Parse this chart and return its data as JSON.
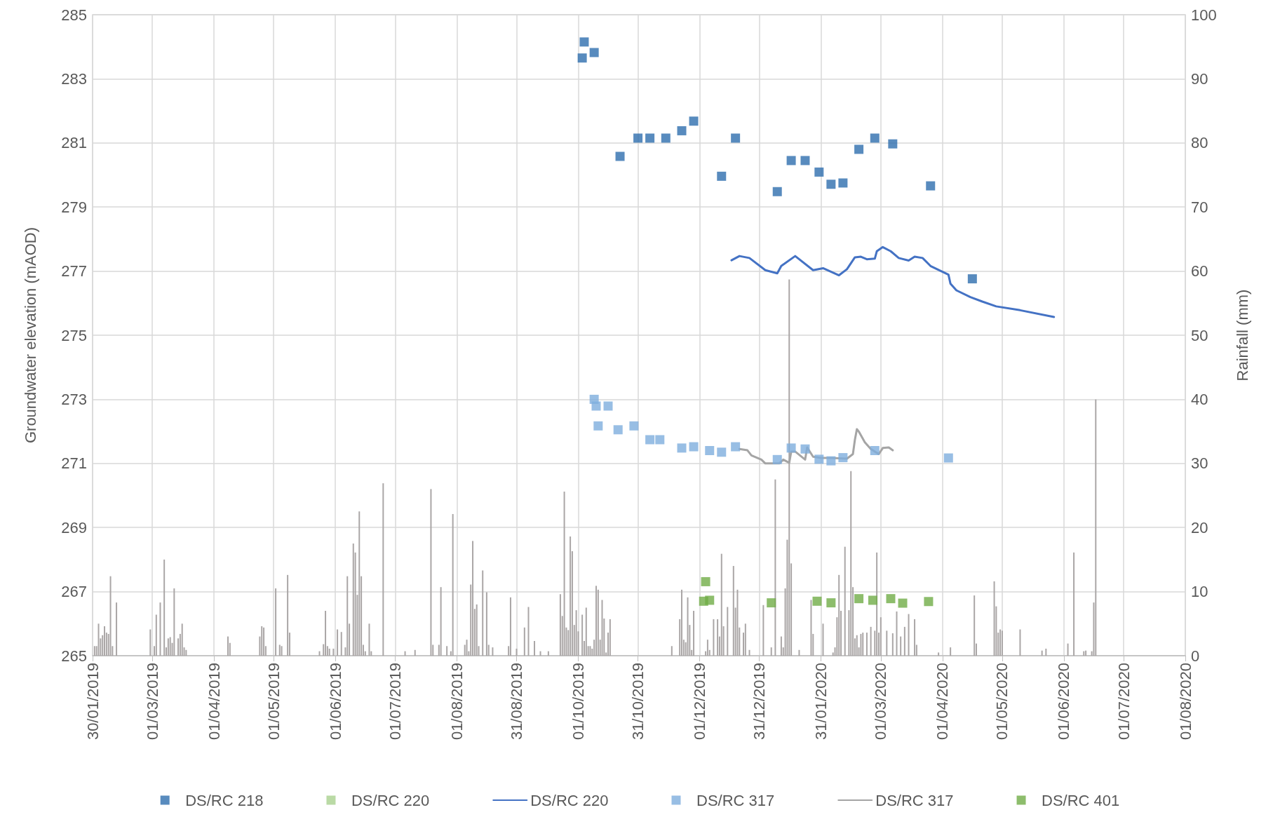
{
  "chart_data": {
    "type": "scatter",
    "ylabel": "Groundwater elevation (mAOD)",
    "y2label": "Rainfall (mm)",
    "xlim": [
      "2019-01-30",
      "2020-08-01"
    ],
    "xticks": [
      {
        "value": "2019-01-30",
        "label": "30/01/2019"
      },
      {
        "value": "2019-03-01",
        "label": "01/03/2019"
      },
      {
        "value": "2019-04-01",
        "label": "01/04/2019"
      },
      {
        "value": "2019-05-01",
        "label": "01/05/2019"
      },
      {
        "value": "2019-06-01",
        "label": "01/06/2019"
      },
      {
        "value": "2019-07-01",
        "label": "01/07/2019"
      },
      {
        "value": "2019-08-01",
        "label": "01/08/2019"
      },
      {
        "value": "2019-08-31",
        "label": "31/08/2019"
      },
      {
        "value": "2019-10-01",
        "label": "01/10/2019"
      },
      {
        "value": "2019-10-31",
        "label": "31/10/2019"
      },
      {
        "value": "2019-12-01",
        "label": "01/12/2019"
      },
      {
        "value": "2019-12-31",
        "label": "31/12/2019"
      },
      {
        "value": "2020-01-31",
        "label": "31/01/2020"
      },
      {
        "value": "2020-03-01",
        "label": "01/03/2020"
      },
      {
        "value": "2020-04-01",
        "label": "01/04/2020"
      },
      {
        "value": "2020-05-01",
        "label": "01/05/2020"
      },
      {
        "value": "2020-06-01",
        "label": "01/06/2020"
      },
      {
        "value": "2020-07-01",
        "label": "01/07/2020"
      },
      {
        "value": "2020-08-01",
        "label": "01/08/2020"
      }
    ],
    "ylim": [
      265,
      285
    ],
    "yticks": [
      265,
      267,
      269,
      271,
      273,
      275,
      277,
      279,
      281,
      283,
      285
    ],
    "y2lim": [
      0,
      100
    ],
    "y2ticks": [
      0,
      10,
      20,
      30,
      40,
      50,
      60,
      70,
      80,
      90,
      100
    ],
    "grid": true,
    "legend": "bottom",
    "marker": "square",
    "series": [
      {
        "type": "bar",
        "axis": "y2",
        "color": "#aaa6a6",
        "x": [
          "2019-01-31",
          "2019-02-01",
          "2019-02-02",
          "2019-02-03",
          "2019-02-04",
          "2019-02-05",
          "2019-02-06",
          "2019-02-07",
          "2019-02-08",
          "2019-02-09",
          "2019-02-11",
          "2019-02-28",
          "2019-03-02",
          "2019-03-03",
          "2019-03-05",
          "2019-03-07",
          "2019-03-08",
          "2019-03-09",
          "2019-03-10",
          "2019-03-11",
          "2019-03-12",
          "2019-03-14",
          "2019-03-15",
          "2019-03-16",
          "2019-03-17",
          "2019-03-18",
          "2019-04-08",
          "2019-04-09",
          "2019-04-24",
          "2019-04-25",
          "2019-04-26",
          "2019-04-27",
          "2019-05-02",
          "2019-05-04",
          "2019-05-05",
          "2019-05-08",
          "2019-05-09",
          "2019-05-24",
          "2019-05-26",
          "2019-05-27",
          "2019-05-28",
          "2019-05-29",
          "2019-05-31",
          "2019-06-02",
          "2019-06-04",
          "2019-06-06",
          "2019-06-07",
          "2019-06-08",
          "2019-06-10",
          "2019-06-11",
          "2019-06-12",
          "2019-06-13",
          "2019-06-14",
          "2019-06-15",
          "2019-06-16",
          "2019-06-18",
          "2019-06-19",
          "2019-06-25",
          "2019-07-06",
          "2019-07-11",
          "2019-07-19",
          "2019-07-20",
          "2019-07-23",
          "2019-07-24",
          "2019-07-27",
          "2019-07-29",
          "2019-07-30",
          "2019-08-05",
          "2019-08-06",
          "2019-08-07",
          "2019-08-08",
          "2019-08-09",
          "2019-08-10",
          "2019-08-11",
          "2019-08-12",
          "2019-08-14",
          "2019-08-16",
          "2019-08-17",
          "2019-08-19",
          "2019-08-27",
          "2019-08-28",
          "2019-08-31",
          "2019-09-04",
          "2019-09-06",
          "2019-09-09",
          "2019-09-12",
          "2019-09-16",
          "2019-09-22",
          "2019-09-23",
          "2019-09-24",
          "2019-09-25",
          "2019-09-26",
          "2019-09-27",
          "2019-09-28",
          "2019-09-29",
          "2019-09-30",
          "2019-10-01",
          "2019-10-03",
          "2019-10-04",
          "2019-10-05",
          "2019-10-06",
          "2019-10-07",
          "2019-10-08",
          "2019-10-09",
          "2019-10-10",
          "2019-10-11",
          "2019-10-12",
          "2019-10-13",
          "2019-10-14",
          "2019-10-15",
          "2019-10-16",
          "2019-10-17",
          "2019-11-17",
          "2019-11-21",
          "2019-11-22",
          "2019-11-23",
          "2019-11-24",
          "2019-11-25",
          "2019-11-26",
          "2019-11-27",
          "2019-11-28",
          "2019-12-04",
          "2019-12-05",
          "2019-12-06",
          "2019-12-08",
          "2019-12-10",
          "2019-12-11",
          "2019-12-12",
          "2019-12-13",
          "2019-12-15",
          "2019-12-18",
          "2019-12-19",
          "2019-12-20",
          "2019-12-21",
          "2019-12-23",
          "2019-12-24",
          "2019-12-26",
          "2020-01-02",
          "2020-01-06",
          "2020-01-08",
          "2020-01-11",
          "2020-01-12",
          "2020-01-13",
          "2020-01-14",
          "2020-01-15",
          "2020-01-16",
          "2020-01-20",
          "2020-01-26",
          "2020-01-27",
          "2020-02-01",
          "2020-02-06",
          "2020-02-07",
          "2020-02-08",
          "2020-02-09",
          "2020-02-10",
          "2020-02-12",
          "2020-02-14",
          "2020-02-15",
          "2020-02-16",
          "2020-02-17",
          "2020-02-18",
          "2020-02-19",
          "2020-02-20",
          "2020-02-21",
          "2020-02-23",
          "2020-02-25",
          "2020-02-27",
          "2020-02-28",
          "2020-02-29",
          "2020-03-01",
          "2020-03-04",
          "2020-03-07",
          "2020-03-09",
          "2020-03-11",
          "2020-03-13",
          "2020-03-15",
          "2020-03-18",
          "2020-03-19",
          "2020-03-30",
          "2020-04-05",
          "2020-04-17",
          "2020-04-18",
          "2020-04-27",
          "2020-04-28",
          "2020-04-29",
          "2020-04-30",
          "2020-05-01",
          "2020-05-10",
          "2020-05-21",
          "2020-05-23",
          "2020-06-03",
          "2020-06-06",
          "2020-06-11",
          "2020-06-12",
          "2020-06-15",
          "2020-06-16",
          "2020-06-17"
        ],
        "values": [
          1.5,
          1.5,
          5.0,
          2.7,
          3.2,
          4.6,
          3.6,
          3.4,
          12.4,
          1.5,
          8.3,
          4.1,
          1.5,
          6.4,
          8.3,
          15.0,
          1.3,
          2.7,
          2.9,
          2.0,
          10.5,
          2.7,
          3.4,
          5.0,
          1.3,
          0.9,
          3.0,
          2.0,
          3.0,
          4.6,
          4.4,
          1.5,
          10.5,
          1.7,
          1.5,
          12.6,
          3.6,
          0.7,
          1.8,
          7.0,
          1.5,
          1.1,
          1.1,
          4.1,
          3.7,
          1.3,
          12.4,
          5.0,
          17.5,
          16.1,
          9.5,
          22.5,
          12.4,
          1.7,
          0.7,
          5.0,
          0.7,
          26.9,
          0.7,
          0.9,
          26.0,
          1.7,
          1.7,
          10.7,
          1.5,
          0.7,
          22.1,
          1.7,
          2.5,
          0.7,
          11.1,
          17.9,
          7.3,
          8.0,
          1.5,
          13.3,
          9.9,
          1.7,
          1.3,
          1.5,
          9.1,
          1.1,
          4.4,
          7.6,
          2.3,
          0.7,
          0.7,
          9.6,
          6.2,
          25.6,
          4.4,
          4.0,
          18.6,
          16.3,
          4.8,
          7.1,
          3.8,
          6.4,
          2.3,
          7.5,
          1.5,
          1.5,
          1.1,
          2.5,
          10.9,
          10.3,
          2.5,
          8.7,
          5.8,
          0.5,
          3.6,
          5.7,
          1.5,
          5.7,
          10.3,
          2.5,
          2.1,
          9.1,
          4.8,
          0.9,
          7.0,
          0.7,
          2.5,
          0.9,
          5.7,
          5.7,
          3.0,
          15.9,
          4.6,
          7.6,
          14.0,
          7.5,
          10.3,
          4.4,
          3.6,
          5.0,
          0.9,
          7.9,
          1.3,
          27.5,
          3.0,
          1.3,
          10.5,
          18.1,
          58.7,
          14.4,
          0.9,
          8.7,
          3.4,
          5.0,
          0.5,
          1.3,
          6.0,
          12.6,
          7.0,
          17.0,
          7.1,
          28.8,
          10.7,
          2.7,
          3.2,
          1.3,
          3.4,
          3.6,
          3.6,
          4.5,
          3.9,
          16.1,
          3.6,
          6.0,
          3.9,
          3.5,
          6.9,
          3.0,
          4.5,
          6.5,
          5.7,
          1.7,
          0.5,
          1.3,
          9.4,
          1.9,
          11.6,
          7.7,
          3.6,
          4.1,
          3.9,
          4.1,
          0.8,
          1.1,
          1.9,
          16.1,
          0.7,
          0.8,
          0.7,
          8.3,
          40.0
        ]
      },
      {
        "name": "DS/RC 218",
        "color": "#2e6eae",
        "x": [
          "2019-10-03",
          "2019-10-04",
          "2019-10-09",
          "2019-10-22",
          "2019-10-31",
          "2019-11-06",
          "2019-11-14",
          "2019-11-22",
          "2019-11-28",
          "2019-12-12",
          "2019-12-19",
          "2020-01-09",
          "2020-01-16",
          "2020-01-23",
          "2020-01-30",
          "2020-02-05",
          "2020-02-11",
          "2020-02-19",
          "2020-02-27",
          "2020-03-07",
          "2020-03-26",
          "2020-04-16"
        ],
        "values": [
          283.65,
          284.15,
          283.82,
          280.58,
          281.15,
          281.15,
          281.15,
          281.38,
          281.68,
          279.96,
          281.15,
          279.48,
          280.45,
          280.45,
          280.09,
          279.71,
          279.75,
          280.8,
          281.15,
          280.97,
          279.66,
          276.76
        ]
      },
      {
        "name": "DS/RC 220",
        "color": "#a9d18e"
      },
      {
        "type": "line",
        "name": "DS/RC 220",
        "color": "#4472c4",
        "marker": "none",
        "line_style": "solid",
        "x": [
          "2019-12-17",
          "2019-12-21",
          "2019-12-26",
          "2020-01-03",
          "2020-01-09",
          "2020-01-11",
          "2020-01-18",
          "2020-01-27",
          "2020-02-01",
          "2020-02-09",
          "2020-02-13",
          "2020-02-17",
          "2020-02-20",
          "2020-02-23",
          "2020-02-27",
          "2020-02-28",
          "2020-03-02",
          "2020-03-06",
          "2020-03-10",
          "2020-03-15",
          "2020-03-18",
          "2020-03-22",
          "2020-03-26",
          "2020-04-04",
          "2020-04-05",
          "2020-04-08",
          "2020-04-15",
          "2020-04-21",
          "2020-04-28",
          "2020-05-10",
          "2020-05-27"
        ],
        "values": [
          277.34,
          277.47,
          277.41,
          277.03,
          276.93,
          277.16,
          277.47,
          277.03,
          277.09,
          276.87,
          277.06,
          277.43,
          277.45,
          277.37,
          277.39,
          277.62,
          277.75,
          277.62,
          277.41,
          277.33,
          277.45,
          277.41,
          277.16,
          276.89,
          276.61,
          276.4,
          276.19,
          276.05,
          275.9,
          275.78,
          275.57
        ]
      },
      {
        "name": "DS/RC 317",
        "color": "#7eaedd",
        "x": [
          "2019-10-09",
          "2019-10-10",
          "2019-10-11",
          "2019-10-16",
          "2019-10-21",
          "2019-10-29",
          "2019-11-06",
          "2019-11-11",
          "2019-11-22",
          "2019-11-28",
          "2019-12-06",
          "2019-12-12",
          "2019-12-19",
          "2020-01-09",
          "2020-01-16",
          "2020-01-23",
          "2020-01-30",
          "2020-02-05",
          "2020-02-11",
          "2020-02-27",
          "2020-04-04"
        ],
        "values": [
          273.0,
          272.79,
          272.17,
          272.79,
          272.05,
          272.17,
          271.74,
          271.74,
          271.48,
          271.52,
          271.4,
          271.35,
          271.52,
          271.12,
          271.48,
          271.45,
          271.13,
          271.08,
          271.18,
          271.4,
          271.17
        ]
      },
      {
        "type": "line",
        "name": "DS/RC 317",
        "color": "#a5a5a5",
        "marker": "none",
        "line_style": "solid",
        "x": [
          "2019-12-21",
          "2019-12-25",
          "2019-12-27",
          "2020-01-01",
          "2020-01-03",
          "2020-01-10",
          "2020-01-12",
          "2020-01-15",
          "2020-01-16",
          "2020-01-18",
          "2020-01-23",
          "2020-01-24",
          "2020-01-27",
          "2020-01-31",
          "2020-02-05",
          "2020-02-13",
          "2020-02-16",
          "2020-02-17",
          "2020-02-18",
          "2020-02-19",
          "2020-02-22",
          "2020-02-25",
          "2020-02-29",
          "2020-03-02",
          "2020-03-05",
          "2020-03-07"
        ],
        "values": [
          271.45,
          271.41,
          271.25,
          271.12,
          271.0,
          271.0,
          271.12,
          271.02,
          271.37,
          271.37,
          271.12,
          271.5,
          271.21,
          271.17,
          271.17,
          271.15,
          271.29,
          271.74,
          272.07,
          271.99,
          271.66,
          271.45,
          271.29,
          271.48,
          271.5,
          271.41
        ]
      },
      {
        "name": "DS/RC 401",
        "color": "#70ad47",
        "x": [
          "2019-12-03",
          "2019-12-04",
          "2019-12-06",
          "2020-01-06",
          "2020-01-29",
          "2020-02-05",
          "2020-02-19",
          "2020-02-26",
          "2020-03-06",
          "2020-03-12",
          "2020-03-25"
        ],
        "values": [
          266.7,
          267.31,
          266.73,
          266.65,
          266.7,
          266.65,
          266.78,
          266.73,
          266.78,
          266.64,
          266.69
        ]
      }
    ]
  }
}
